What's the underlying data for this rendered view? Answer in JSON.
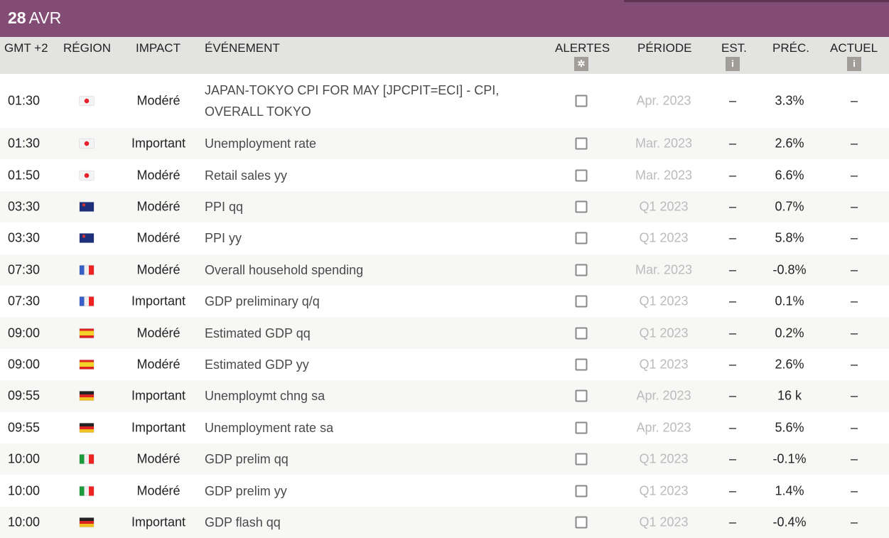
{
  "header": {
    "day": "28",
    "month": "AVR"
  },
  "columns": {
    "time": "GMT +2",
    "region": "RÉGION",
    "impact": "IMPACT",
    "event": "ÉVÉNEMENT",
    "alerts": "ALERTES",
    "period": "PÉRIODE",
    "est": "EST.",
    "prev": "PRÉC.",
    "actual": "ACTUEL"
  },
  "header_icons": {
    "alerts": "gear-icon",
    "est": "info-icon",
    "actual": "info-icon"
  },
  "colors": {
    "brand": "#834c74",
    "header_bg": "#e3e4e1",
    "period_text": "#bbbbbb"
  },
  "rows": [
    {
      "time": "01:30",
      "region": "jp",
      "impact": "Modéré",
      "event": "JAPAN-TOKYO CPI FOR MAY [JPCPIT=ECI] - CPI, OVERALL TOKYO",
      "period": "Apr. 2023",
      "est": "–",
      "prev": "3.3%",
      "actual": "–"
    },
    {
      "time": "01:30",
      "region": "jp",
      "impact": "Important",
      "event": "Unemployment rate",
      "period": "Mar. 2023",
      "est": "–",
      "prev": "2.6%",
      "actual": "–"
    },
    {
      "time": "01:50",
      "region": "jp",
      "impact": "Modéré",
      "event": "Retail sales yy",
      "period": "Mar. 2023",
      "est": "–",
      "prev": "6.6%",
      "actual": "–"
    },
    {
      "time": "03:30",
      "region": "au",
      "impact": "Modéré",
      "event": "PPI qq",
      "period": "Q1 2023",
      "est": "–",
      "prev": "0.7%",
      "actual": "–"
    },
    {
      "time": "03:30",
      "region": "au",
      "impact": "Modéré",
      "event": "PPI yy",
      "period": "Q1 2023",
      "est": "–",
      "prev": "5.8%",
      "actual": "–"
    },
    {
      "time": "07:30",
      "region": "fr",
      "impact": "Modéré",
      "event": "Overall household spending",
      "period": "Mar. 2023",
      "est": "–",
      "prev": "-0.8%",
      "actual": "–"
    },
    {
      "time": "07:30",
      "region": "fr",
      "impact": "Important",
      "event": "GDP preliminary q/q",
      "period": "Q1 2023",
      "est": "–",
      "prev": "0.1%",
      "actual": "–"
    },
    {
      "time": "09:00",
      "region": "es",
      "impact": "Modéré",
      "event": "Estimated GDP qq",
      "period": "Q1 2023",
      "est": "–",
      "prev": "0.2%",
      "actual": "–"
    },
    {
      "time": "09:00",
      "region": "es",
      "impact": "Modéré",
      "event": "Estimated GDP yy",
      "period": "Q1 2023",
      "est": "–",
      "prev": "2.6%",
      "actual": "–"
    },
    {
      "time": "09:55",
      "region": "de",
      "impact": "Important",
      "event": "Unemploymt chng sa",
      "period": "Apr. 2023",
      "est": "–",
      "prev": "16 k",
      "actual": "–"
    },
    {
      "time": "09:55",
      "region": "de",
      "impact": "Important",
      "event": "Unemployment rate sa",
      "period": "Apr. 2023",
      "est": "–",
      "prev": "5.6%",
      "actual": "–"
    },
    {
      "time": "10:00",
      "region": "it",
      "impact": "Modéré",
      "event": "GDP prelim qq",
      "period": "Q1 2023",
      "est": "–",
      "prev": "-0.1%",
      "actual": "–"
    },
    {
      "time": "10:00",
      "region": "it",
      "impact": "Modéré",
      "event": "GDP prelim yy",
      "period": "Q1 2023",
      "est": "–",
      "prev": "1.4%",
      "actual": "–"
    },
    {
      "time": "10:00",
      "region": "de",
      "impact": "Important",
      "event": "GDP flash qq",
      "period": "Q1 2023",
      "est": "–",
      "prev": "-0.4%",
      "actual": "–"
    }
  ]
}
